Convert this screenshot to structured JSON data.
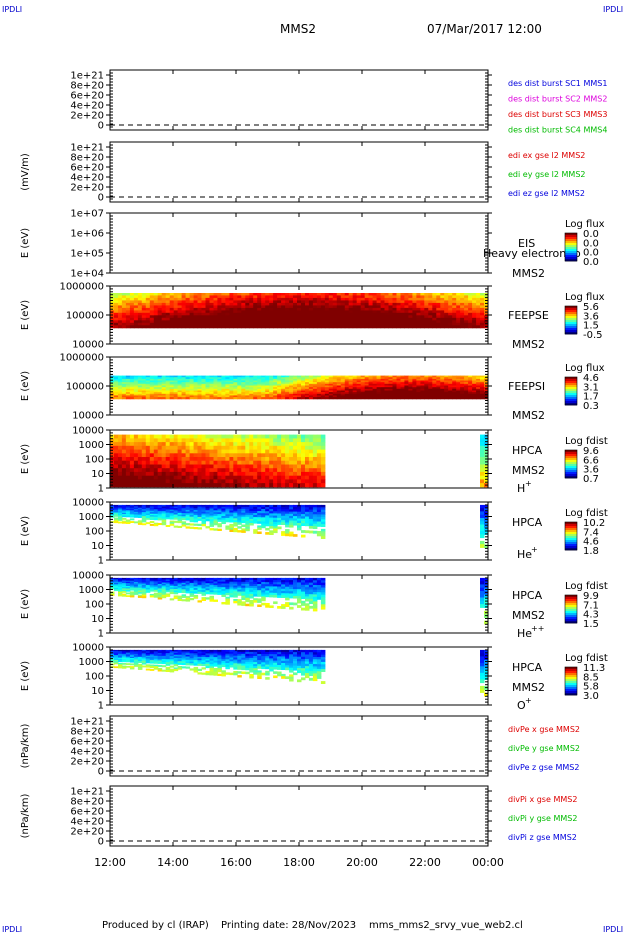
{
  "corners": {
    "top_left": "IPDLI",
    "top_right": "IPDLI",
    "bottom_left": "IPDLI",
    "bottom_right": "IPDLI"
  },
  "header": {
    "spacecraft": "MMS2",
    "datetime": "07/Mar/2017 12:00"
  },
  "footer": {
    "produced_by": "Produced by cl (IRAP)",
    "printing_date": "Printing date: 28/Nov/2023",
    "filename": "mms_mms2_srvy_vue_web2.cl"
  },
  "x_axis": {
    "ticks": [
      "12:00",
      "14:00",
      "16:00",
      "18:00",
      "20:00",
      "22:00",
      "00:00"
    ]
  },
  "colors": {
    "mms1": "#0000dd",
    "mms2": "#dd00dd",
    "mms3": "#dd0000",
    "mms4": "#00bb00",
    "x": "#dd0000",
    "y": "#00bb00",
    "z": "#0000dd"
  },
  "chart_data": [
    {
      "type": "line",
      "panel": "des-dist-burst",
      "ylabel": "",
      "yticks": [
        "1e+21",
        "8e+20",
        "6e+20",
        "4e+20",
        "2e+20",
        "0"
      ],
      "series": [
        {
          "name": "des dist burst SC1 MMS1",
          "color": "#0000dd"
        },
        {
          "name": "des dist burst SC2 MMS2",
          "color": "#dd00dd"
        },
        {
          "name": "des dist burst SC3 MMS3",
          "color": "#dd0000"
        },
        {
          "name": "des dist burst SC4 MMS4",
          "color": "#00bb00"
        }
      ]
    },
    {
      "type": "line",
      "panel": "edi-e",
      "ylabel": "(mV/m)",
      "yticks": [
        "1e+21",
        "8e+20",
        "6e+20",
        "4e+20",
        "2e+20",
        "0"
      ],
      "series": [
        {
          "name": "edi ex gse l2 MMS2",
          "color": "#dd0000"
        },
        {
          "name": "edi ey gse l2 MMS2",
          "color": "#00bb00"
        },
        {
          "name": "edi ez gse l2 MMS2",
          "color": "#0000dd"
        }
      ]
    },
    {
      "type": "heatmap",
      "panel": "eis",
      "ylabel": "E (eV)",
      "yticks": [
        "1e+07",
        "1e+06",
        "1e+05",
        "1e+04"
      ],
      "instrument": "EIS",
      "sc": "MMS2",
      "overlay": "Heavy electron to",
      "colorbar": {
        "title": "Log flux",
        "ticks": [
          "0.0",
          "0.0",
          "0.0",
          "0.0"
        ]
      }
    },
    {
      "type": "heatmap",
      "panel": "feepse",
      "ylabel": "E (eV)",
      "yticks": [
        "1000000",
        "100000",
        "10000"
      ],
      "instrument": "FEEPSE",
      "sc": "MMS2",
      "colorbar": {
        "title": "Log flux",
        "ticks": [
          "5.6",
          "3.6",
          "1.5",
          "-0.5"
        ]
      }
    },
    {
      "type": "heatmap",
      "panel": "feepsi",
      "ylabel": "E (eV)",
      "yticks": [
        "1000000",
        "100000",
        "10000"
      ],
      "instrument": "FEEPSI",
      "sc": "MMS2",
      "colorbar": {
        "title": "Log flux",
        "ticks": [
          "4.6",
          "3.1",
          "1.7",
          "0.3"
        ]
      }
    },
    {
      "type": "heatmap",
      "panel": "hpca-h",
      "ylabel": "E (eV)",
      "yticks": [
        "10000",
        "1000",
        "100",
        "10",
        "1"
      ],
      "instrument": "HPCA",
      "sc": "MMS2",
      "species": "H",
      "charge": "+",
      "colorbar": {
        "title": "Log fdist",
        "ticks": [
          "9.6",
          "6.6",
          "3.6",
          "0.7"
        ]
      }
    },
    {
      "type": "heatmap",
      "panel": "hpca-he",
      "ylabel": "E (eV)",
      "yticks": [
        "10000",
        "1000",
        "100",
        "10",
        "1"
      ],
      "instrument": "HPCA",
      "sc": "",
      "species": "He",
      "charge": "+",
      "colorbar": {
        "title": "Log fdist",
        "ticks": [
          "10.2",
          "7.4",
          "4.6",
          "1.8"
        ]
      }
    },
    {
      "type": "heatmap",
      "panel": "hpca-hepp",
      "ylabel": "E (eV)",
      "yticks": [
        "10000",
        "1000",
        "100",
        "10",
        "1"
      ],
      "instrument": "HPCA",
      "sc": "MMS2",
      "species": "He",
      "charge": "++",
      "colorbar": {
        "title": "Log fdist",
        "ticks": [
          "9.9",
          "7.1",
          "4.3",
          "1.5"
        ]
      }
    },
    {
      "type": "heatmap",
      "panel": "hpca-o",
      "ylabel": "E (eV)",
      "yticks": [
        "10000",
        "1000",
        "100",
        "10",
        "1"
      ],
      "instrument": "HPCA",
      "sc": "MMS2",
      "species": "O",
      "charge": "+",
      "colorbar": {
        "title": "Log fdist",
        "ticks": [
          "11.3",
          "8.5",
          "5.8",
          "3.0"
        ]
      }
    },
    {
      "type": "line",
      "panel": "divpe",
      "ylabel": "(nPa/km)",
      "yticks": [
        "1e+21",
        "8e+20",
        "6e+20",
        "4e+20",
        "2e+20",
        "0"
      ],
      "series": [
        {
          "name": "divPe x gse MMS2",
          "color": "#dd0000"
        },
        {
          "name": "divPe y gse MMS2",
          "color": "#00bb00"
        },
        {
          "name": "divPe z gse MMS2",
          "color": "#0000dd"
        }
      ]
    },
    {
      "type": "line",
      "panel": "divpi",
      "ylabel": "(nPa/km)",
      "yticks": [
        "1e+21",
        "8e+20",
        "6e+20",
        "4e+20",
        "2e+20",
        "0"
      ],
      "series": [
        {
          "name": "divPi x gse MMS2",
          "color": "#dd0000"
        },
        {
          "name": "divPi y gse MMS2",
          "color": "#00bb00"
        },
        {
          "name": "divPi z gse MMS2",
          "color": "#0000dd"
        }
      ]
    }
  ]
}
